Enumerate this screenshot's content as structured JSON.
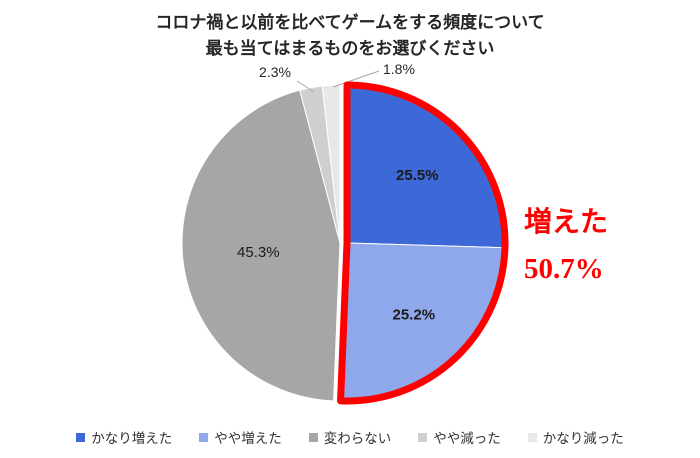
{
  "title": {
    "line1": "コロナ禍と以前を比べてゲームをする頻度について",
    "line2": "最も当てはまるものをお選びください"
  },
  "chart_data": {
    "type": "pie",
    "title": "コロナ禍と以前を比べてゲームをする頻度について 最も当てはまるものをお選びください",
    "categories": [
      "かなり増えた",
      "やや増えた",
      "変わらない",
      "やや減った",
      "かなり減った"
    ],
    "values": [
      25.5,
      25.2,
      45.3,
      2.3,
      1.8
    ],
    "unit": "%",
    "data_labels": [
      "25.5%",
      "25.2%",
      "45.3%",
      "2.3%",
      "1.8%"
    ],
    "colors": [
      "#3d68d8",
      "#8fa8ec",
      "#a6a6a6",
      "#cfcfcf",
      "#e8e8e8"
    ],
    "start_angle_deg": -90,
    "direction": "clockwise",
    "legend_position": "bottom",
    "highlight": {
      "slice_indices": [
        0,
        1
      ],
      "label": "増えた",
      "value_label": "50.7%",
      "value": 50.7,
      "color": "#ff0000"
    }
  }
}
